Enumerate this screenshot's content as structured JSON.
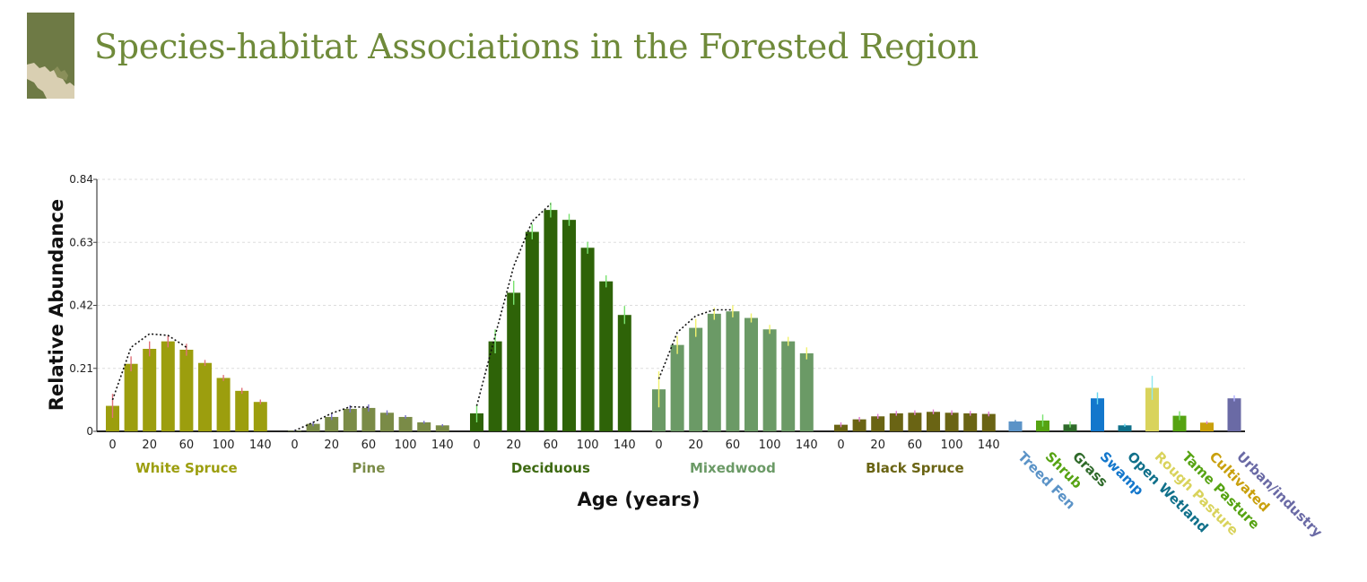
{
  "header": {
    "title": "Species-habitat Associations in the Forested Region"
  },
  "colors": {
    "title": "#6f8a3a",
    "logo_bg": "#6e7a45",
    "logo_land": "#d9cfb2"
  },
  "chart_data": {
    "type": "bar",
    "ylabel": "Relative Abundance",
    "xlabel": "Age (years)",
    "ylim": [
      0,
      0.84
    ],
    "yticks": [
      "0",
      "0.21",
      "0.42",
      "0.63",
      "0.84"
    ],
    "age_ticks": [
      "0",
      "20",
      "60",
      "100",
      "140"
    ],
    "grid": "horizontal dashed",
    "age_groups": [
      {
        "name": "White Spruce",
        "color": "#9c9e0e",
        "label_color": "#9c9e0e",
        "err_color": "#e0737b",
        "values": [
          0.085,
          0.225,
          0.275,
          0.3,
          0.272,
          0.228,
          0.178,
          0.135,
          0.098
        ],
        "errors": [
          0.04,
          0.025,
          0.025,
          0.02,
          0.02,
          0.01,
          0.01,
          0.01,
          0.008
        ],
        "curve": [
          0.105,
          0.28,
          0.325,
          0.32,
          0.28
        ]
      },
      {
        "name": "Pine",
        "color": "#7a8b47",
        "label_color": "#7a8b47",
        "err_color": "#7a72c8",
        "values": [
          0.002,
          0.025,
          0.048,
          0.075,
          0.078,
          0.062,
          0.048,
          0.03,
          0.02
        ],
        "errors": [
          0.003,
          0.008,
          0.01,
          0.012,
          0.012,
          0.008,
          0.006,
          0.005,
          0.004
        ],
        "curve": [
          0.002,
          0.03,
          0.06,
          0.082,
          0.08
        ]
      },
      {
        "name": "Deciduous",
        "color": "#2e6308",
        "label_color": "#3e6a12",
        "err_color": "#79e26f",
        "values": [
          0.06,
          0.3,
          0.462,
          0.665,
          0.738,
          0.705,
          0.612,
          0.5,
          0.388
        ],
        "errors": [
          0.03,
          0.04,
          0.04,
          0.025,
          0.025,
          0.02,
          0.02,
          0.02,
          0.03
        ],
        "curve": [
          0.085,
          0.32,
          0.55,
          0.7,
          0.758
        ]
      },
      {
        "name": "Mixedwood",
        "color": "#6b9a66",
        "label_color": "#6b9a66",
        "err_color": "#f2f26e",
        "values": [
          0.14,
          0.288,
          0.345,
          0.392,
          0.4,
          0.378,
          0.34,
          0.3,
          0.26
        ],
        "errors": [
          0.06,
          0.03,
          0.03,
          0.02,
          0.02,
          0.015,
          0.015,
          0.015,
          0.02
        ],
        "curve": [
          0.175,
          0.33,
          0.385,
          0.405,
          0.405
        ]
      },
      {
        "name": "Black Spruce",
        "color": "#6a6414",
        "label_color": "#6a6414",
        "err_color": "#e07cd0",
        "values": [
          0.022,
          0.04,
          0.05,
          0.06,
          0.062,
          0.065,
          0.062,
          0.06,
          0.058
        ],
        "errors": [
          0.008,
          0.008,
          0.008,
          0.008,
          0.008,
          0.008,
          0.008,
          0.008,
          0.008
        ],
        "curve": []
      }
    ],
    "habitats": [
      {
        "name": "Treed Fen",
        "color": "#5b93c7",
        "value": 0.033,
        "error": 0.005,
        "err_color": "#5b93c7"
      },
      {
        "name": "Shrub",
        "color": "#56a312",
        "value": 0.036,
        "error": 0.02,
        "err_color": "#79e26f"
      },
      {
        "name": "Grass",
        "color": "#2f6a2a",
        "value": 0.023,
        "error": 0.01,
        "err_color": "#79e26f"
      },
      {
        "name": "Swamp",
        "color": "#1377cc",
        "value": 0.11,
        "error": 0.02,
        "err_color": "#64d6f0"
      },
      {
        "name": "Open Wetland",
        "color": "#10708a",
        "value": 0.02,
        "error": 0.005,
        "err_color": "#64d6f0"
      },
      {
        "name": "Rough Pasture",
        "color": "#d9d35c",
        "value": 0.145,
        "error": 0.04,
        "err_color": "#8fe8f0"
      },
      {
        "name": "Tame Pasture",
        "color": "#56a312",
        "value": 0.052,
        "error": 0.015,
        "err_color": "#79e26f"
      },
      {
        "name": "Cultivated",
        "color": "#c9a00d",
        "value": 0.029,
        "error": 0.005,
        "err_color": "#e07cd0"
      },
      {
        "name": "Urban/industry",
        "color": "#6a6aa5",
        "value": 0.11,
        "error": 0.01,
        "err_color": "#b0b0ff"
      }
    ]
  }
}
